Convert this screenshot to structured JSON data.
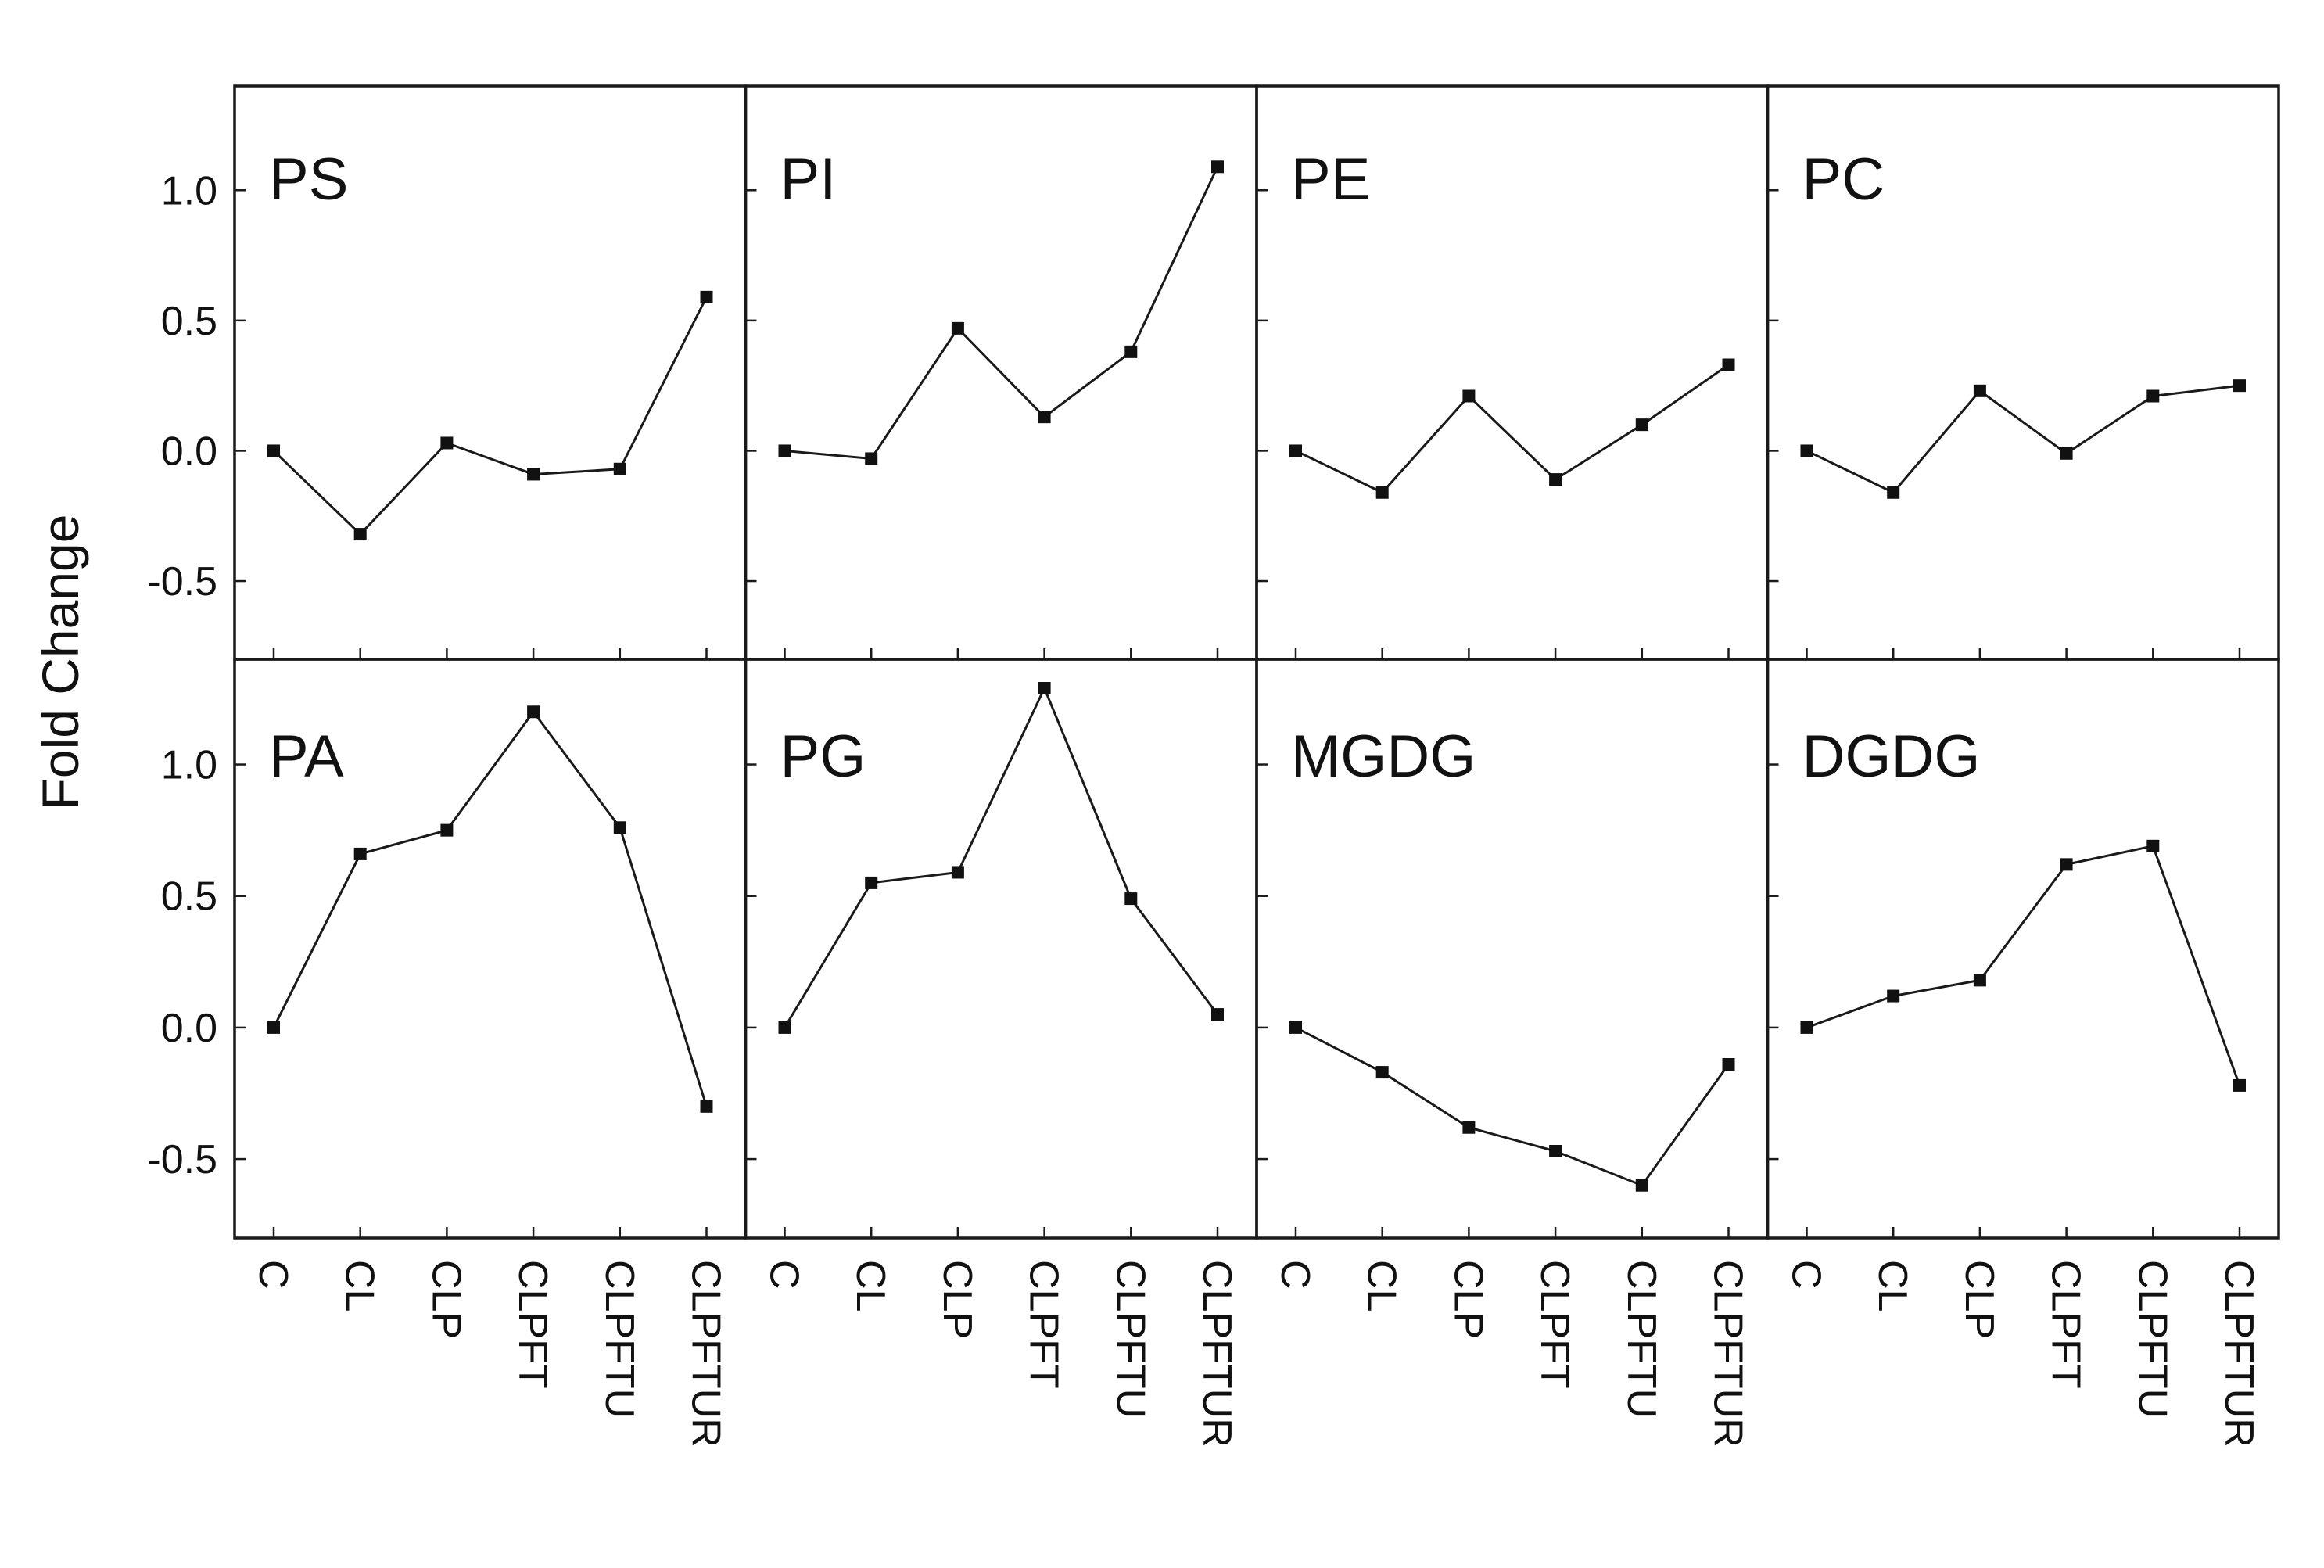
{
  "chart_data": {
    "type": "line",
    "layout": "small multiples, 2 rows x 4 columns, shared axes",
    "ylabel": "Fold Change",
    "xlabel": "",
    "categories": [
      "C",
      "CL",
      "CLP",
      "CLPFT",
      "CLPFTU",
      "CLPFTUR"
    ],
    "ylim": [
      -0.8,
      1.4
    ],
    "yticks": [
      -0.5,
      0.0,
      0.5,
      1.0
    ],
    "ytick_labels": [
      "-0.5",
      "0.0",
      "0.5",
      "1.0"
    ],
    "marker": "square",
    "color": "#111111",
    "grid": false,
    "panels": [
      {
        "label": "PS",
        "values": [
          0.0,
          -0.32,
          0.03,
          -0.09,
          -0.07,
          0.59
        ]
      },
      {
        "label": "PI",
        "values": [
          0.0,
          -0.03,
          0.47,
          0.13,
          0.38,
          1.09
        ]
      },
      {
        "label": "PE",
        "values": [
          0.0,
          -0.16,
          0.21,
          -0.11,
          0.1,
          0.33
        ]
      },
      {
        "label": "PC",
        "values": [
          0.0,
          -0.16,
          0.23,
          -0.01,
          0.21,
          0.25
        ]
      },
      {
        "label": "PA",
        "values": [
          0.0,
          0.66,
          0.75,
          1.2,
          0.76,
          -0.3
        ]
      },
      {
        "label": "PG",
        "values": [
          0.0,
          0.55,
          0.59,
          1.29,
          0.49,
          0.05
        ]
      },
      {
        "label": "MGDG",
        "values": [
          0.0,
          -0.17,
          -0.38,
          -0.47,
          -0.6,
          -0.14
        ]
      },
      {
        "label": "DGDG",
        "values": [
          0.0,
          0.12,
          0.18,
          0.62,
          0.69,
          -0.22
        ]
      }
    ]
  }
}
